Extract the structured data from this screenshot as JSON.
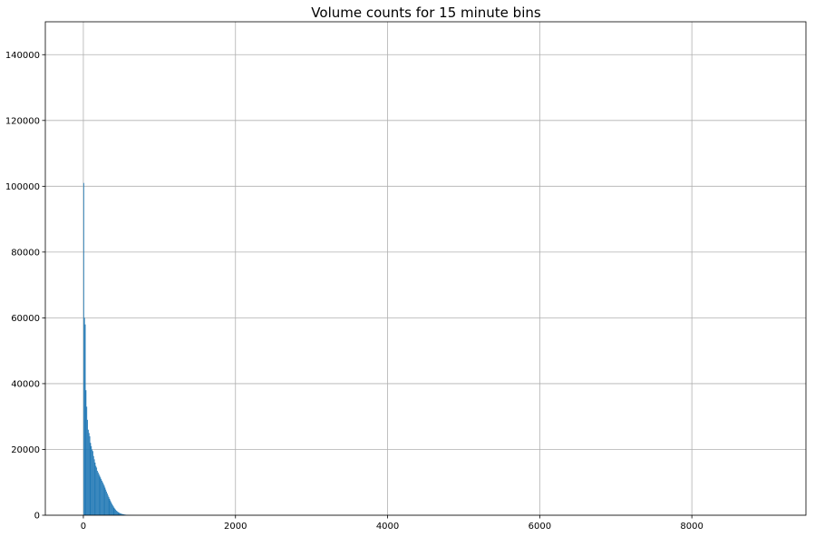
{
  "chart_data": {
    "type": "bar",
    "title": "Volume counts for 15 minute bins",
    "xlabel": "",
    "ylabel": "",
    "xlim": [
      -500,
      9500
    ],
    "ylim": [
      0,
      150000
    ],
    "x_ticks": [
      0,
      2000,
      4000,
      6000,
      8000
    ],
    "y_ticks": [
      0,
      20000,
      40000,
      60000,
      80000,
      100000,
      120000,
      140000
    ],
    "x_tick_labels": [
      "0",
      "2000",
      "4000",
      "6000",
      "8000"
    ],
    "y_tick_labels": [
      "0",
      "20000",
      "40000",
      "60000",
      "80000",
      "100000",
      "120000",
      "140000"
    ],
    "grid": true,
    "legend": "none",
    "bar_color": "#1f77b4",
    "bin_width": 10,
    "series": [
      {
        "values": [
          [
            0,
            101000
          ],
          [
            10,
            60000
          ],
          [
            20,
            58000
          ],
          [
            30,
            38000
          ],
          [
            40,
            33000
          ],
          [
            50,
            29000
          ],
          [
            60,
            26000
          ],
          [
            70,
            25000
          ],
          [
            80,
            24000
          ],
          [
            90,
            22000
          ],
          [
            100,
            21000
          ],
          [
            110,
            20000
          ],
          [
            120,
            19500
          ],
          [
            130,
            18000
          ],
          [
            140,
            17000
          ],
          [
            150,
            16000
          ],
          [
            160,
            15000
          ],
          [
            170,
            14500
          ],
          [
            180,
            13500
          ],
          [
            190,
            13000
          ],
          [
            200,
            12500
          ],
          [
            210,
            12000
          ],
          [
            220,
            11500
          ],
          [
            230,
            11000
          ],
          [
            240,
            10500
          ],
          [
            250,
            10000
          ],
          [
            260,
            9500
          ],
          [
            270,
            9000
          ],
          [
            280,
            8400
          ],
          [
            290,
            7800
          ],
          [
            300,
            7200
          ],
          [
            310,
            6600
          ],
          [
            320,
            6000
          ],
          [
            330,
            5500
          ],
          [
            340,
            5000
          ],
          [
            350,
            4500
          ],
          [
            360,
            4000
          ],
          [
            370,
            3500
          ],
          [
            380,
            3100
          ],
          [
            390,
            2700
          ],
          [
            400,
            2300
          ],
          [
            410,
            2000
          ],
          [
            420,
            1700
          ],
          [
            430,
            1400
          ],
          [
            440,
            1200
          ],
          [
            450,
            1000
          ],
          [
            460,
            850
          ],
          [
            470,
            700
          ],
          [
            480,
            600
          ],
          [
            490,
            500
          ],
          [
            500,
            420
          ],
          [
            510,
            350
          ],
          [
            520,
            300
          ],
          [
            530,
            250
          ],
          [
            540,
            200
          ],
          [
            550,
            170
          ],
          [
            560,
            140
          ],
          [
            570,
            110
          ],
          [
            580,
            90
          ],
          [
            590,
            70
          ],
          [
            600,
            55
          ],
          [
            610,
            45
          ],
          [
            620,
            35
          ],
          [
            630,
            28
          ],
          [
            640,
            22
          ],
          [
            650,
            18
          ],
          [
            660,
            14
          ],
          [
            670,
            10
          ],
          [
            680,
            8
          ],
          [
            690,
            6
          ],
          [
            700,
            5
          ]
        ]
      }
    ]
  }
}
